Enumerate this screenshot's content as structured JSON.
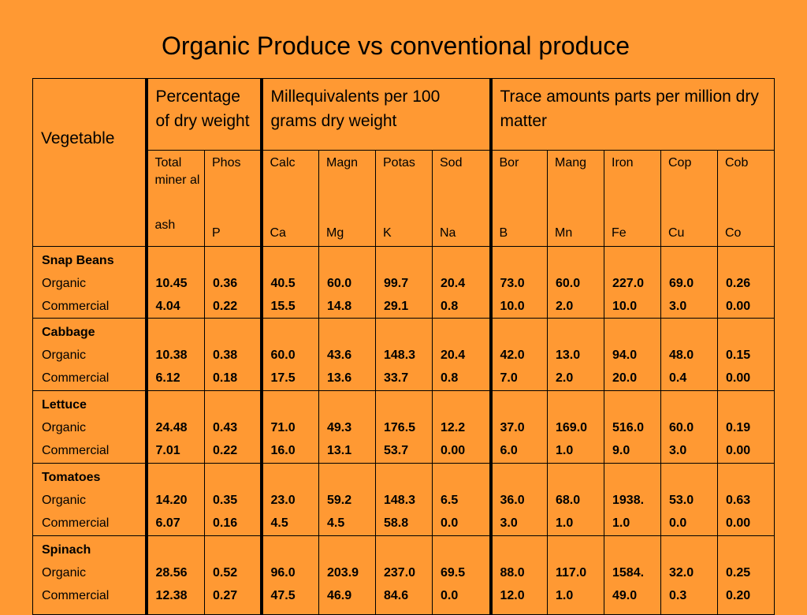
{
  "title": "Organic Produce vs conventional produce",
  "headers": {
    "vegetable": "Vegetable",
    "pct_dry": "Percentage of dry weight",
    "meq": "Millequivalents per 100 grams dry weight",
    "trace": "Trace amounts parts per million dry matter"
  },
  "columns": [
    {
      "top": "Total miner al",
      "bottom": "ash"
    },
    {
      "top": "Phos",
      "bottom": "P"
    },
    {
      "top": "Calc",
      "bottom": "Ca"
    },
    {
      "top": "Magn",
      "bottom": "Mg"
    },
    {
      "top": "Potas",
      "bottom": "K"
    },
    {
      "top": "Sod",
      "bottom": "Na"
    },
    {
      "top": "Bor",
      "bottom": "B"
    },
    {
      "top": "Mang",
      "bottom": "Mn"
    },
    {
      "top": "Iron",
      "bottom": "Fe"
    },
    {
      "top": "Cop",
      "bottom": "Cu"
    },
    {
      "top": "Cob",
      "bottom": "Co"
    }
  ],
  "row_labels": {
    "organic": "Organic",
    "commercial": "Commercial"
  },
  "vegetables": [
    {
      "name": "Snap Beans",
      "organic": [
        "10.45",
        "0.36",
        "40.5",
        "60.0",
        "99.7",
        "20.4",
        "73.0",
        "60.0",
        "227.0",
        "69.0",
        "0.26"
      ],
      "commercial": [
        "4.04",
        "0.22",
        "15.5",
        "14.8",
        "29.1",
        "0.8",
        "10.0",
        "2.0",
        "10.0",
        "3.0",
        "0.00"
      ]
    },
    {
      "name": "Cabbage",
      "organic": [
        "10.38",
        "0.38",
        "60.0",
        "43.6",
        "148.3",
        "20.4",
        "42.0",
        "13.0",
        "94.0",
        "48.0",
        "0.15"
      ],
      "commercial": [
        "6.12",
        "0.18",
        "17.5",
        "13.6",
        "33.7",
        "0.8",
        "7.0",
        "2.0",
        "20.0",
        "0.4",
        "0.00"
      ]
    },
    {
      "name": "Lettuce",
      "organic": [
        "24.48",
        "0.43",
        "71.0",
        "49.3",
        "176.5",
        "12.2",
        "37.0",
        "169.0",
        "516.0",
        "60.0",
        "0.19"
      ],
      "commercial": [
        "7.01",
        "0.22",
        "16.0",
        "13.1",
        "53.7",
        "0.00",
        "6.0",
        "1.0",
        "9.0",
        "3.0",
        "0.00"
      ]
    },
    {
      "name": "Tomatoes",
      "organic": [
        "14.20",
        "0.35",
        "23.0",
        "59.2",
        "148.3",
        "6.5",
        "36.0",
        "68.0",
        "1938.",
        "53.0",
        "0.63"
      ],
      "commercial": [
        "6.07",
        "0.16",
        "4.5",
        "4.5",
        "58.8",
        "0.0",
        "3.0",
        "1.0",
        "1.0",
        "0.0",
        "0.00"
      ]
    },
    {
      "name": "Spinach",
      "organic": [
        "28.56",
        "0.52",
        "96.0",
        "203.9",
        "237.0",
        "69.5",
        "88.0",
        "117.0",
        "1584.",
        "32.0",
        "0.25"
      ],
      "commercial": [
        "12.38",
        "0.27",
        "47.5",
        "46.9",
        "84.6",
        "0.0",
        "12.0",
        "1.0",
        "49.0",
        "0.3",
        "0.20"
      ]
    }
  ]
}
